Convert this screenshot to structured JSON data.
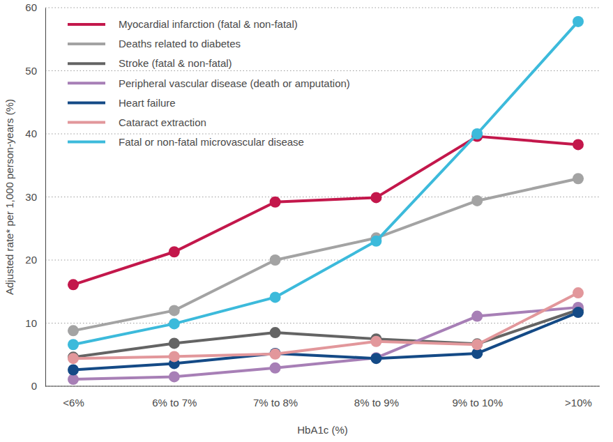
{
  "chart_data": {
    "type": "line",
    "x_label": "HbA1c (%)",
    "y_label": "Adjusted rate* per 1,000 person-years (%)",
    "categories": [
      "<6%",
      "6% to 7%",
      "7% to 8%",
      "8% to 9%",
      "9% to 10%",
      ">10%"
    ],
    "series": [
      {
        "name": "Myocardial infarction (fatal & non-fatal)",
        "color": "#c3174b",
        "values": [
          16.1,
          21.3,
          29.2,
          29.9,
          39.6,
          38.3
        ]
      },
      {
        "name": "Deaths related to diabetes",
        "color": "#a3a3a3",
        "values": [
          8.8,
          12.0,
          20.0,
          23.5,
          29.4,
          32.9
        ]
      },
      {
        "name": "Stroke (fatal & non-fatal)",
        "color": "#646464",
        "values": [
          4.6,
          6.8,
          8.5,
          7.5,
          6.7,
          12.1
        ]
      },
      {
        "name": "Peripheral vascular disease (death or amputation)",
        "color": "#a77fb6",
        "values": [
          1.1,
          1.5,
          2.9,
          4.5,
          11.1,
          12.5
        ]
      },
      {
        "name": "Heart failure",
        "color": "#144a86",
        "values": [
          2.6,
          3.6,
          5.2,
          4.4,
          5.2,
          11.7
        ]
      },
      {
        "name": "Cataract extraction",
        "color": "#e2979b",
        "values": [
          4.4,
          4.7,
          5.1,
          7.1,
          6.6,
          14.8
        ]
      },
      {
        "name": "Fatal or non-fatal microvascular disease",
        "color": "#3cbadb",
        "values": [
          6.6,
          9.9,
          14.1,
          23.0,
          40.0,
          57.8
        ]
      }
    ],
    "ylim": [
      0,
      60
    ],
    "yticks": [
      0,
      10,
      20,
      30,
      40,
      50,
      60
    ],
    "grid": true,
    "legend": "upper left",
    "marker": "circle"
  }
}
